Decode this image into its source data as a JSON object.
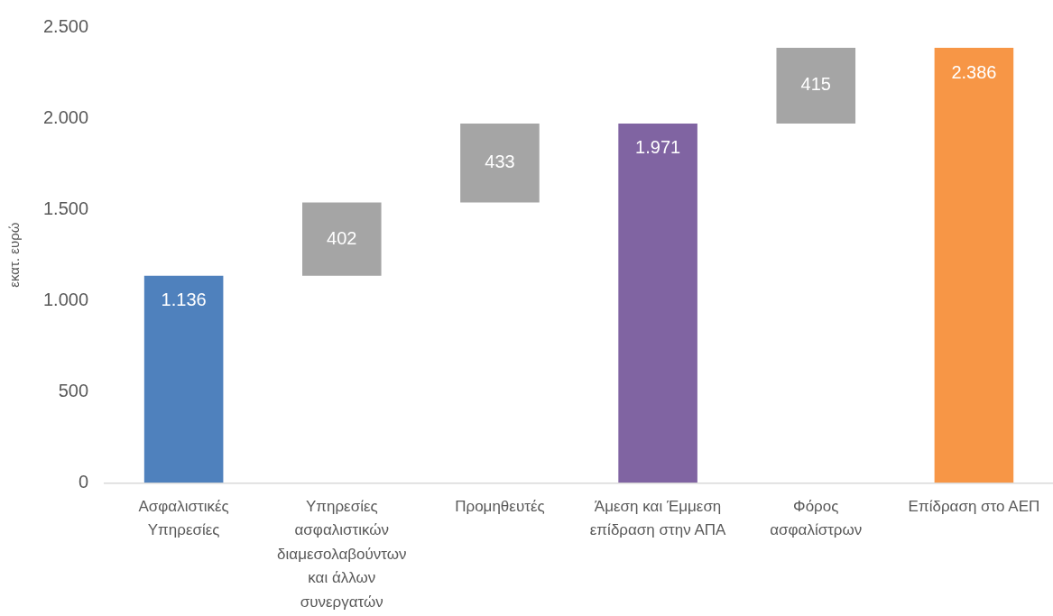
{
  "chart_data": {
    "type": "bar",
    "ylabel": "εκατ. ευρώ",
    "categories": [
      "Ασφαλιστικές Υπηρεσίες",
      "Υπηρεσίες ασφαλιστικών διαμεσολαβούντων και άλλων συνεργατών",
      "Προμηθευτές",
      "Άμεση και Έμμεση επίδραση στην ΑΠΑ",
      "Φόρος ασφαλίστρων",
      "Επίδραση στο ΑΕΠ"
    ],
    "values": [
      1136,
      402,
      433,
      1971,
      415,
      2386
    ],
    "base": [
      0,
      1136,
      1538,
      0,
      1971,
      0
    ],
    "colors": [
      "#4f81bd",
      "#a5a5a5",
      "#a5a5a5",
      "#8064a2",
      "#a5a5a5",
      "#f79646"
    ],
    "value_labels": [
      "1.136",
      "402",
      "433",
      "1.971",
      "415",
      "2.386"
    ],
    "ylim": [
      0,
      2500
    ],
    "yticks": [
      0,
      500,
      {
        "value": 1000,
        "label": "1.000"
      },
      {
        "value": 1500,
        "label": "1.500"
      },
      {
        "value": 2000,
        "label": "2.000"
      },
      {
        "value": 2500,
        "label": "2.500"
      }
    ],
    "grid": false,
    "legend": false
  }
}
